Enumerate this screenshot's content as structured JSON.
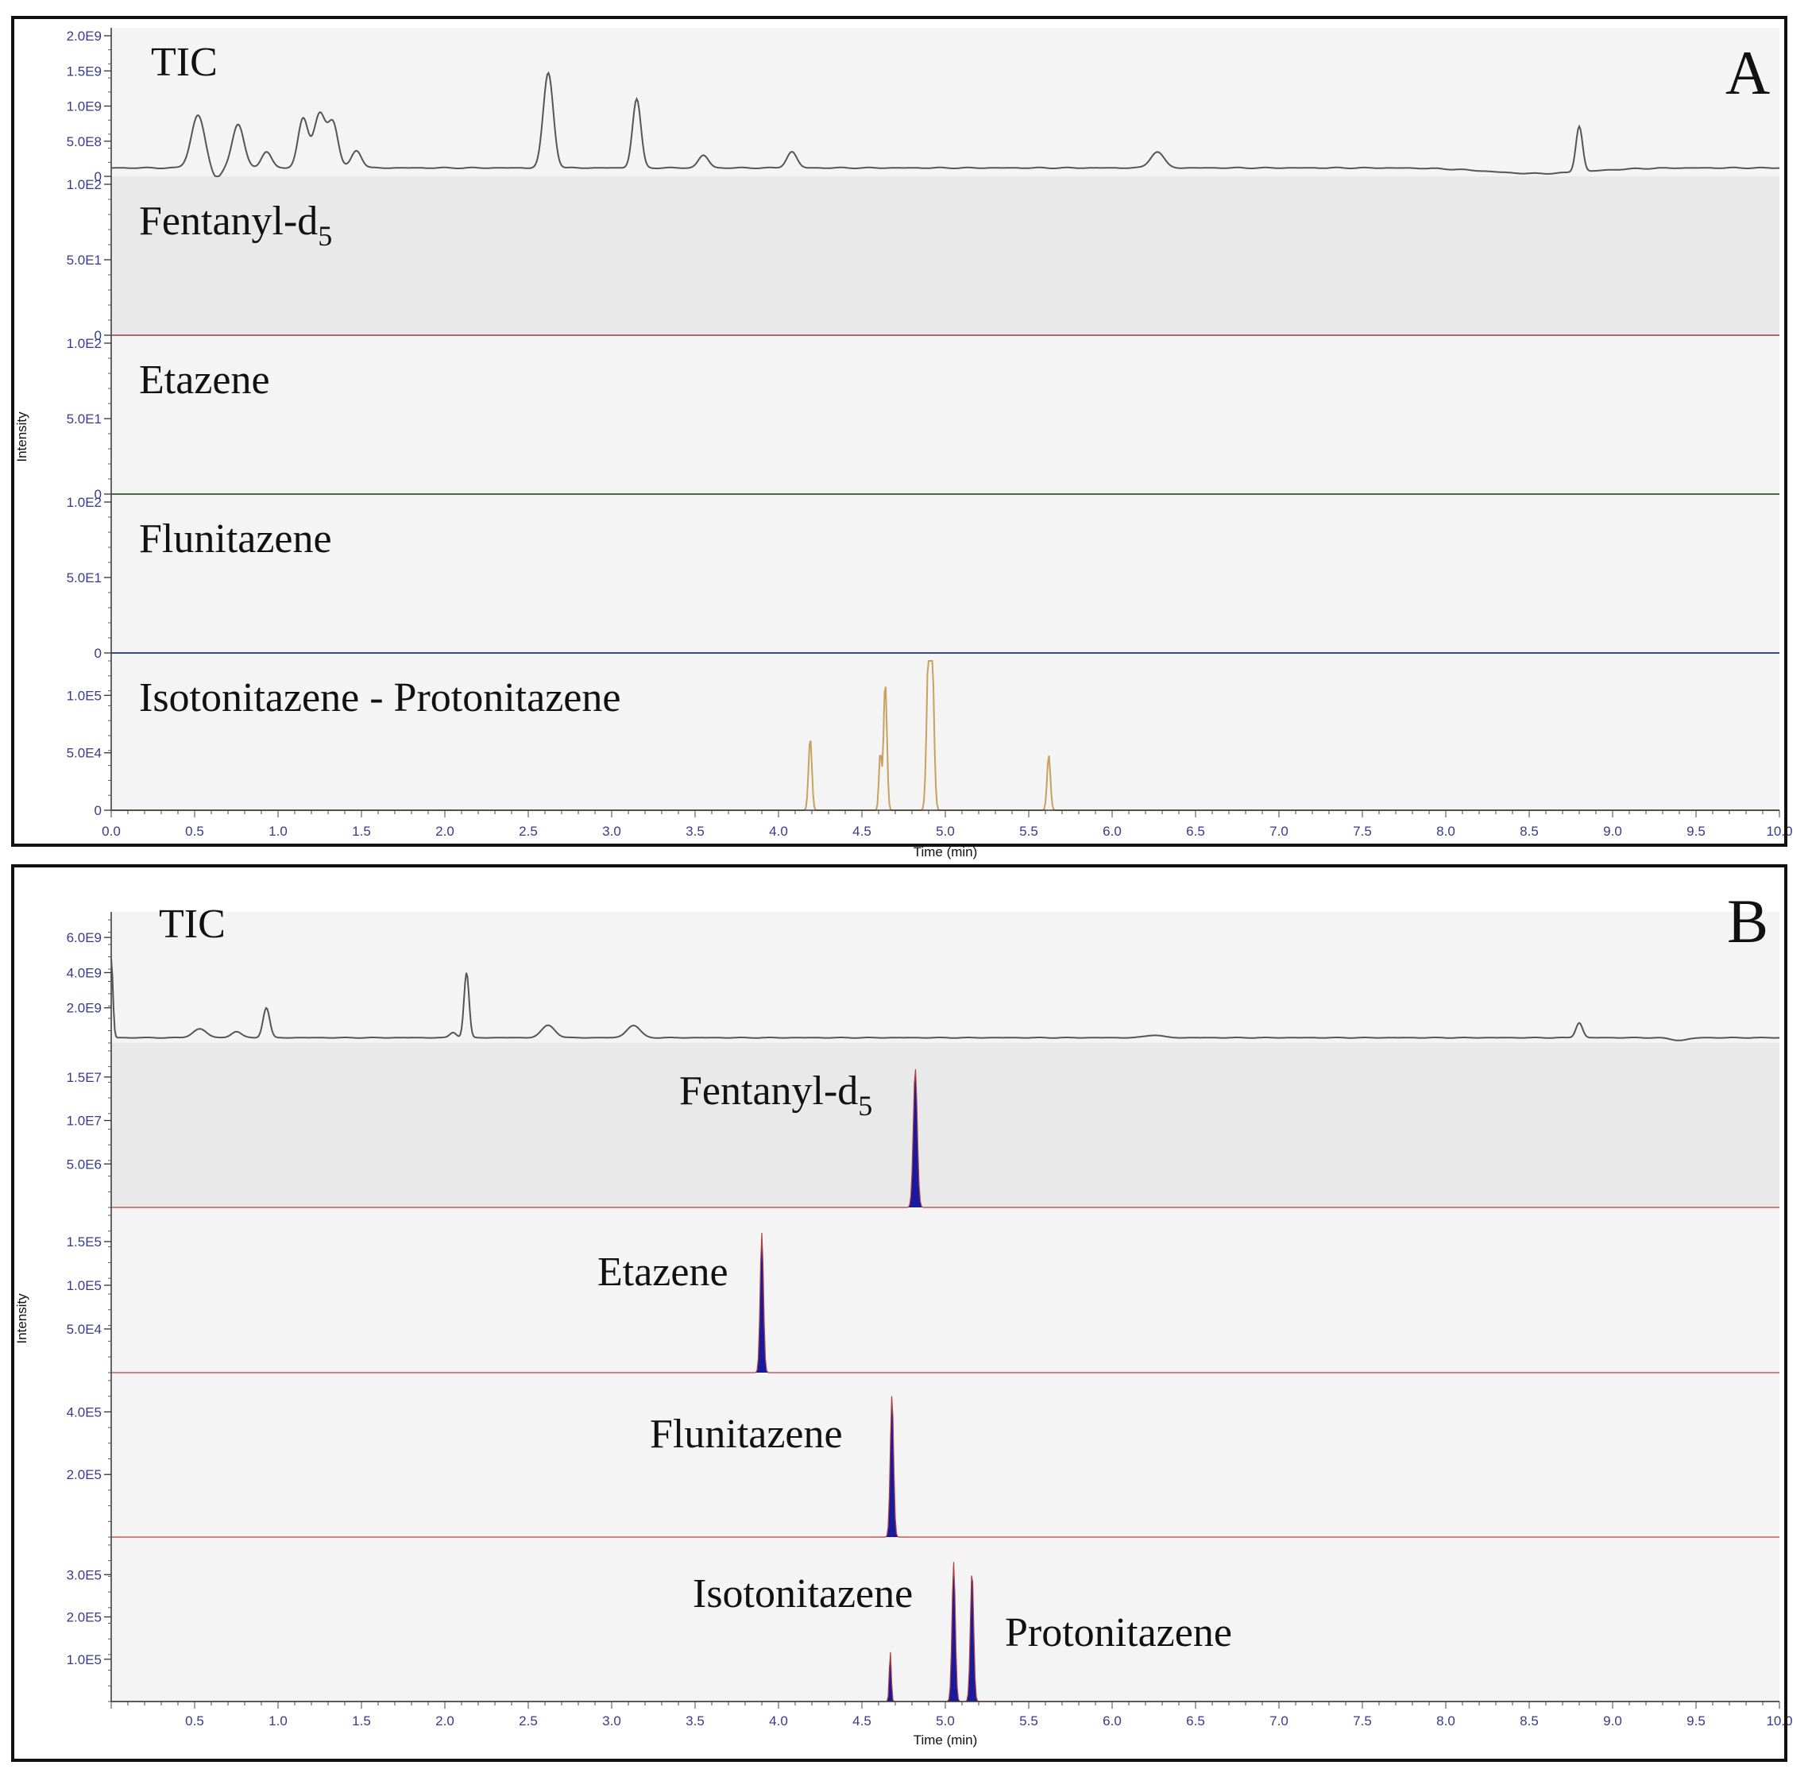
{
  "chart_data": [
    {
      "type": "line",
      "panel_label": "A",
      "xlabel": "Time (min)",
      "ylabel": "Intensity",
      "xlim": [
        0,
        10
      ],
      "x_ticks": [
        "0.0",
        "0.5",
        "1.0",
        "1.5",
        "2.0",
        "2.5",
        "3.0",
        "3.5",
        "4.0",
        "4.5",
        "5.0",
        "5.5",
        "6.0",
        "6.5",
        "7.0",
        "7.5",
        "8.0",
        "8.5",
        "9.0",
        "9.5",
        "10.0"
      ],
      "traces": [
        {
          "label": "TIC",
          "label_sub": "",
          "label_pos": "top-left",
          "ylim": [
            0,
            2000000000
          ],
          "y_ticks": [
            {
              "v": 0,
              "t": "0"
            },
            {
              "v": 500000000,
              "t": "5.0E8"
            },
            {
              "v": 1000000000,
              "t": "1.0E9"
            },
            {
              "v": 1500000000,
              "t": "1.5E9"
            },
            {
              "v": 2000000000,
              "t": "2.0E9"
            }
          ],
          "baseline": 120000000,
          "color": "#555555",
          "fill": false,
          "background": "#f4f4f4",
          "peaks": [
            [
              0.52,
              750000000,
              0.04
            ],
            [
              0.76,
              620000000,
              0.035
            ],
            [
              0.93,
              230000000,
              0.03
            ],
            [
              1.15,
              700000000,
              0.03
            ],
            [
              1.25,
              770000000,
              0.035
            ],
            [
              1.33,
              620000000,
              0.03
            ],
            [
              1.47,
              250000000,
              0.03
            ],
            [
              2.62,
              1350000000,
              0.03
            ],
            [
              3.15,
              980000000,
              0.025
            ],
            [
              3.55,
              180000000,
              0.03
            ],
            [
              4.08,
              230000000,
              0.03
            ],
            [
              6.27,
              230000000,
              0.04
            ],
            [
              8.8,
              650000000,
              0.02
            ]
          ],
          "dips": [
            [
              0.63,
              -150000000,
              0.03
            ],
            [
              8.55,
              -80000000,
              0.3
            ]
          ]
        },
        {
          "label": "Fentanyl-d",
          "label_sub": "5",
          "label_pos": "top-left",
          "ylim": [
            0,
            100
          ],
          "y_ticks": [
            {
              "v": 0,
              "t": "0"
            },
            {
              "v": 50,
              "t": "5.0E1"
            },
            {
              "v": 100,
              "t": "1.0E2"
            }
          ],
          "baseline": 0,
          "color": "#a86a6a",
          "fill": false,
          "background": "#e9e9e9",
          "peaks": [],
          "dips": []
        },
        {
          "label": "Etazene",
          "label_sub": "",
          "label_pos": "top-left",
          "ylim": [
            0,
            100
          ],
          "y_ticks": [
            {
              "v": 0,
              "t": "0"
            },
            {
              "v": 50,
              "t": "5.0E1"
            },
            {
              "v": 100,
              "t": "1.0E2"
            }
          ],
          "baseline": 0,
          "color": "#4a6a4a",
          "fill": false,
          "background": "#f4f4f4",
          "peaks": [],
          "dips": []
        },
        {
          "label": "Flunitazene",
          "label_sub": "",
          "label_pos": "top-left",
          "ylim": [
            0,
            100
          ],
          "y_ticks": [
            {
              "v": 0,
              "t": "0"
            },
            {
              "v": 50,
              "t": "5.0E1"
            },
            {
              "v": 100,
              "t": "1.0E2"
            }
          ],
          "baseline": 0,
          "color": "#3a4a8a",
          "fill": false,
          "background": "#f4f4f4",
          "peaks": [],
          "dips": []
        },
        {
          "label": "Isotonitazene - Protonitazene",
          "label_sub": "",
          "label_pos": "top-left",
          "ylim": [
            0,
            130000
          ],
          "y_ticks": [
            {
              "v": 0,
              "t": "0"
            },
            {
              "v": 50000,
              "t": "5.0E4"
            },
            {
              "v": 100000,
              "t": "1.0E5"
            }
          ],
          "baseline": 0,
          "color": "#c8a060",
          "fill": false,
          "background": "#f4f4f4",
          "peaks": [
            [
              4.19,
              63000,
              0.01
            ],
            [
              4.61,
              50000,
              0.008
            ],
            [
              4.64,
              112000,
              0.01
            ],
            [
              4.9,
              130000,
              0.012
            ],
            [
              4.92,
              130000,
              0.012
            ],
            [
              5.62,
              48000,
              0.01
            ]
          ],
          "dips": []
        }
      ]
    },
    {
      "type": "line",
      "panel_label": "B",
      "xlabel": "Time (min)",
      "ylabel": "Intensity",
      "xlim": [
        0,
        10
      ],
      "x_ticks": [
        "0.5",
        "1.0",
        "1.5",
        "2.0",
        "2.5",
        "3.0",
        "3.5",
        "4.0",
        "4.5",
        "5.0",
        "5.5",
        "6.0",
        "6.5",
        "7.0",
        "7.5",
        "8.0",
        "8.5",
        "9.0",
        "9.5",
        "10.0"
      ],
      "traces": [
        {
          "label": "TIC",
          "label_sub": "",
          "label_pos": "top-left",
          "ylim": [
            0,
            7000000000
          ],
          "y_ticks": [
            {
              "v": 2000000000,
              "t": "2.0E9"
            },
            {
              "v": 4000000000,
              "t": "4.0E9"
            },
            {
              "v": 6000000000,
              "t": "6.0E9"
            }
          ],
          "baseline": 300000000,
          "color": "#555555",
          "fill": false,
          "background": "#f4f4f4",
          "peaks": [
            [
              0.0,
              4500000000,
              0.01
            ],
            [
              0.53,
              500000000,
              0.04
            ],
            [
              0.75,
              350000000,
              0.03
            ],
            [
              0.93,
              1700000000,
              0.02
            ],
            [
              2.05,
              300000000,
              0.02
            ],
            [
              2.13,
              3700000000,
              0.015
            ],
            [
              2.62,
              700000000,
              0.04
            ],
            [
              3.13,
              700000000,
              0.04
            ],
            [
              6.25,
              150000000,
              0.05
            ],
            [
              8.8,
              850000000,
              0.02
            ]
          ],
          "dips": [
            [
              9.4,
              -150000000,
              0.05
            ]
          ]
        },
        {
          "label": "Fentanyl-d",
          "label_sub": "5",
          "label_pos": "near-peak",
          "ylim": [
            0,
            18000000
          ],
          "y_ticks": [
            {
              "v": 5000000,
              "t": "5.0E6"
            },
            {
              "v": 10000000,
              "t": "1.0E7"
            },
            {
              "v": 15000000,
              "t": "1.5E7"
            }
          ],
          "baseline": 0,
          "color": "#1a1a9c",
          "fill": true,
          "background": "#e9e9e9",
          "peaks": [
            [
              4.82,
              16000000,
              0.012
            ]
          ],
          "dips": []
        },
        {
          "label": "Etazene",
          "label_sub": "",
          "label_pos": "near-peak",
          "ylim": [
            0,
            180000
          ],
          "y_ticks": [
            {
              "v": 50000,
              "t": "5.0E4"
            },
            {
              "v": 100000,
              "t": "1.0E5"
            },
            {
              "v": 150000,
              "t": "1.5E5"
            }
          ],
          "baseline": 0,
          "color": "#1a1a9c",
          "fill": true,
          "background": "#f4f4f4",
          "peaks": [
            [
              3.9,
              160000,
              0.01
            ]
          ],
          "dips": []
        },
        {
          "label": "Flunitazene",
          "label_sub": "",
          "label_pos": "near-peak",
          "ylim": [
            0,
            500000
          ],
          "y_ticks": [
            {
              "v": 200000,
              "t": "2.0E5"
            },
            {
              "v": 400000,
              "t": "4.0E5"
            }
          ],
          "baseline": 0,
          "color": "#1a1a9c",
          "fill": true,
          "background": "#f4f4f4",
          "peaks": [
            [
              4.68,
              455000,
              0.01
            ]
          ],
          "dips": []
        },
        {
          "label": "Isotonitazene",
          "label_sub": "",
          "label_pos": "near-peak",
          "label2": "Protonitazene",
          "ylim": [
            0,
            370000
          ],
          "y_ticks": [
            {
              "v": 100000,
              "t": "1.0E5"
            },
            {
              "v": 200000,
              "t": "2.0E5"
            },
            {
              "v": 300000,
              "t": "3.0E5"
            }
          ],
          "baseline": 0,
          "color": "#1a1a9c",
          "fill": true,
          "background": "#f4f4f4",
          "peaks": [
            [
              4.67,
              120000,
              0.006
            ],
            [
              5.05,
              330000,
              0.01
            ],
            [
              5.16,
              310000,
              0.01
            ]
          ],
          "dips": []
        }
      ]
    }
  ]
}
